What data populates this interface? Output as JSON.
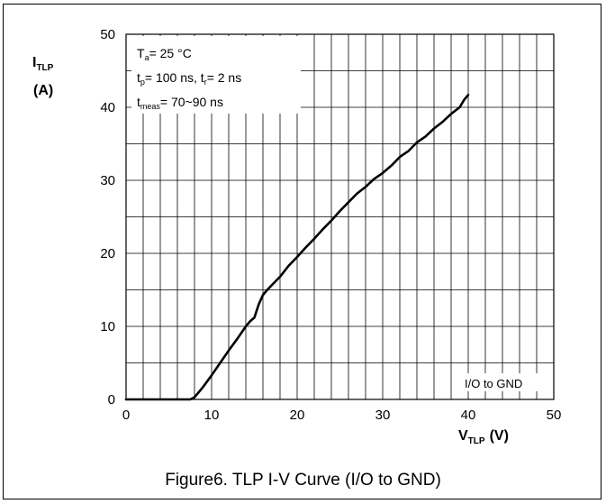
{
  "figure": {
    "caption": "Figure6. TLP I-V Curve (I/O to GND)"
  },
  "chart_data": {
    "type": "line",
    "xlabel": {
      "main": "V",
      "sub": "TLP",
      "unit": "(V)"
    },
    "ylabel": {
      "main": "I",
      "sub": "TLP",
      "unit": "(A)"
    },
    "xlim": [
      0,
      50
    ],
    "ylim": [
      0,
      50
    ],
    "xticks": [
      0,
      10,
      20,
      30,
      40,
      50
    ],
    "yticks": [
      0,
      10,
      20,
      30,
      40,
      50
    ],
    "grid": true,
    "conditions": [
      {
        "main": "T",
        "sub": "a",
        "rest": "= 25 °C"
      },
      {
        "main": "t",
        "sub": "p",
        "rest": "= 100 ns, t",
        "sub2": "r",
        "rest2": "= 2 ns"
      },
      {
        "main": "t",
        "sub": "meas",
        "rest": "= 70~90 ns"
      }
    ],
    "series": [
      {
        "name": "I/O to GND",
        "x": [
          0,
          7.5,
          8.0,
          8.5,
          9.0,
          10.0,
          11.0,
          12.0,
          13.0,
          14.0,
          14.5,
          15.0,
          15.5,
          16.0,
          16.5,
          17.0,
          18.0,
          19.0,
          20.0,
          21.0,
          22.0,
          23.0,
          24.0,
          25.0,
          26.0,
          27.0,
          28.0,
          29.0,
          30.0,
          31.0,
          32.0,
          33.0,
          34.0,
          35.0,
          36.0,
          37.0,
          38.0,
          39.0,
          39.5,
          40.0
        ],
        "y": [
          0,
          0,
          0.3,
          1.0,
          1.7,
          3.3,
          5.0,
          6.7,
          8.3,
          10.0,
          10.7,
          11.2,
          13.0,
          14.3,
          15.0,
          15.6,
          16.8,
          18.3,
          19.5,
          20.8,
          22.0,
          23.3,
          24.5,
          25.8,
          27.0,
          28.2,
          29.1,
          30.2,
          31.0,
          32.0,
          33.2,
          34.0,
          35.2,
          36.0,
          37.1,
          38.0,
          39.1,
          40.0,
          41.0,
          41.7
        ]
      }
    ]
  }
}
